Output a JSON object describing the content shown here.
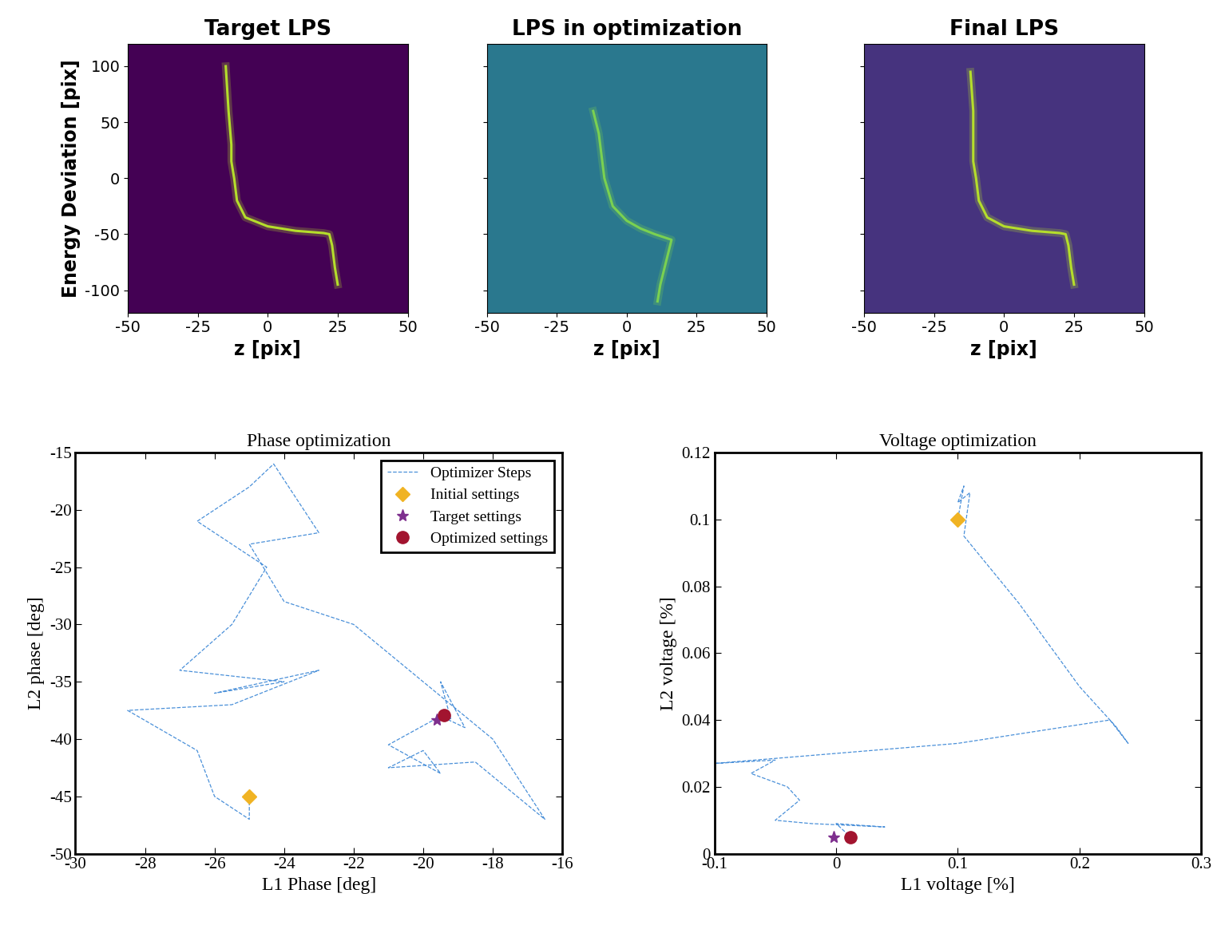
{
  "chart_data": [
    {
      "type": "line",
      "title": "Target LPS",
      "xlabel": "z [pix]",
      "ylabel": "Energy Deviation [pix]",
      "xlim": [
        -50,
        50
      ],
      "xticks": [
        -50,
        -25,
        0,
        25,
        50
      ],
      "ylim": [
        -120,
        120
      ],
      "yticks": [
        -100,
        -50,
        0,
        50,
        100
      ],
      "series": [
        {
          "color": "#b5de2b",
          "line_style": "solid",
          "marker": "none",
          "x": [
            -15,
            -14,
            -13,
            -13,
            -12,
            -11,
            -8,
            0,
            10,
            20,
            22,
            23,
            24,
            25
          ],
          "values": [
            100,
            60,
            30,
            15,
            0,
            -20,
            -35,
            -43,
            -47,
            -49,
            -50,
            -60,
            -80,
            -95
          ]
        }
      ]
    },
    {
      "type": "line",
      "title": "LPS in optimization",
      "xlabel": "z [pix]",
      "tick_labels": "x",
      "xlim": [
        -50,
        50
      ],
      "xticks": [
        -50,
        -25,
        0,
        25,
        50
      ],
      "ylim": [
        -120,
        120
      ],
      "yticks": [
        -100,
        -50,
        0,
        50,
        100
      ],
      "series": [
        {
          "color": "#7ad151",
          "line_style": "solid",
          "marker": "none",
          "x": [
            -12,
            -10,
            -9,
            -8,
            -5,
            0,
            5,
            10,
            16,
            14,
            12,
            11
          ],
          "values": [
            60,
            40,
            20,
            0,
            -25,
            -38,
            -45,
            -50,
            -55,
            -75,
            -95,
            -110
          ]
        }
      ]
    },
    {
      "type": "line",
      "title": "Final LPS",
      "xlabel": "z [pix]",
      "tick_labels": "x",
      "xlim": [
        -50,
        50
      ],
      "xticks": [
        -50,
        -25,
        0,
        25,
        50
      ],
      "ylim": [
        -120,
        120
      ],
      "yticks": [
        -100,
        -50,
        0,
        50,
        100
      ],
      "series": [
        {
          "color": "#b5de2b",
          "line_style": "solid",
          "marker": "none",
          "x": [
            -12,
            -11,
            -11,
            -11,
            -10,
            -9,
            -6,
            0,
            10,
            20,
            22,
            23,
            24,
            25
          ],
          "values": [
            95,
            60,
            30,
            15,
            0,
            -20,
            -35,
            -43,
            -47,
            -49,
            -50,
            -60,
            -80,
            -95
          ]
        }
      ]
    },
    {
      "type": "line",
      "title": "Phase optimization",
      "xlabel": "L1 Phase [deg]",
      "ylabel": "L2 phase [deg]",
      "xlim": [
        -30,
        -16
      ],
      "xticks": [
        -30,
        -28,
        -26,
        -24,
        -22,
        -20,
        -18,
        -16
      ],
      "ylim": [
        -50,
        -15
      ],
      "yticks": [
        -50,
        -45,
        -40,
        -35,
        -30,
        -25,
        -20,
        -15
      ],
      "legend": "upper right",
      "series": [
        {
          "name": "Optimizer Steps",
          "color": "#4a90d9",
          "line_style": "dashed",
          "marker": "none",
          "x": [
            -25,
            -25,
            -26,
            -26.5,
            -28.5,
            -25.5,
            -23,
            -26,
            -24,
            -27,
            -25.5,
            -24.5,
            -26.5,
            -25,
            -24.3,
            -23,
            -25,
            -24,
            -22,
            -18,
            -16.5,
            -18.5,
            -21,
            -20,
            -19.5,
            -21,
            -19.5,
            -18.8,
            -19.5,
            -19.2,
            -19.4
          ],
          "values": [
            -45,
            -47,
            -45,
            -41,
            -37.5,
            -37,
            -34,
            -36,
            -35,
            -34,
            -30,
            -25,
            -21,
            -18,
            -16,
            -22,
            -23,
            -28,
            -30,
            -40,
            -47,
            -42,
            -42.5,
            -41,
            -43,
            -40.5,
            -38,
            -39,
            -35,
            -38.3,
            -37.9
          ]
        },
        {
          "name": "Initial settings",
          "color": "#f0b323",
          "line_style": "none",
          "marker": "diamond",
          "x": [
            -25
          ],
          "values": [
            -45
          ]
        },
        {
          "name": "Target settings",
          "color": "#7e2f8e",
          "line_style": "none",
          "marker": "star",
          "x": [
            -19.6
          ],
          "values": [
            -38.3
          ]
        },
        {
          "name": "Optimized settings",
          "color": "#a2142f",
          "line_style": "none",
          "marker": "circle",
          "x": [
            -19.4
          ],
          "values": [
            -37.9
          ]
        }
      ]
    },
    {
      "type": "line",
      "title": "Voltage optimization",
      "xlabel": "L1 voltage [%]",
      "ylabel": "L2 voltage [%]",
      "xlim": [
        -0.1,
        0.3
      ],
      "xticks": [
        -0.1,
        0,
        0.1,
        0.2,
        0.3
      ],
      "ylim": [
        0,
        0.12
      ],
      "yticks": [
        0,
        0.02,
        0.04,
        0.06,
        0.08,
        0.1,
        0.12
      ],
      "series": [
        {
          "color": "#4a90d9",
          "line_style": "dashed",
          "marker": "none",
          "x": [
            0.1,
            0.105,
            0.1,
            0.11,
            0.105,
            0.15,
            0.2,
            0.23,
            0.24,
            0.225,
            0.1,
            -0.1,
            -0.05,
            -0.07,
            -0.04,
            -0.03,
            -0.05,
            -0.02,
            0.04,
            0.0,
            0.012
          ],
          "values": [
            0.1,
            0.11,
            0.105,
            0.108,
            0.095,
            0.075,
            0.05,
            0.038,
            0.033,
            0.04,
            0.033,
            0.027,
            0.028,
            0.024,
            0.02,
            0.016,
            0.01,
            0.009,
            0.008,
            0.009,
            0.005
          ]
        },
        {
          "color": "#f0b323",
          "line_style": "none",
          "marker": "diamond",
          "x": [
            0.1
          ],
          "values": [
            0.1
          ]
        },
        {
          "color": "#7e2f8e",
          "line_style": "none",
          "marker": "star",
          "x": [
            -0.002
          ],
          "values": [
            0.005
          ]
        },
        {
          "color": "#a2142f",
          "line_style": "none",
          "marker": "circle",
          "x": [
            0.012
          ],
          "values": [
            0.005
          ]
        }
      ]
    }
  ]
}
